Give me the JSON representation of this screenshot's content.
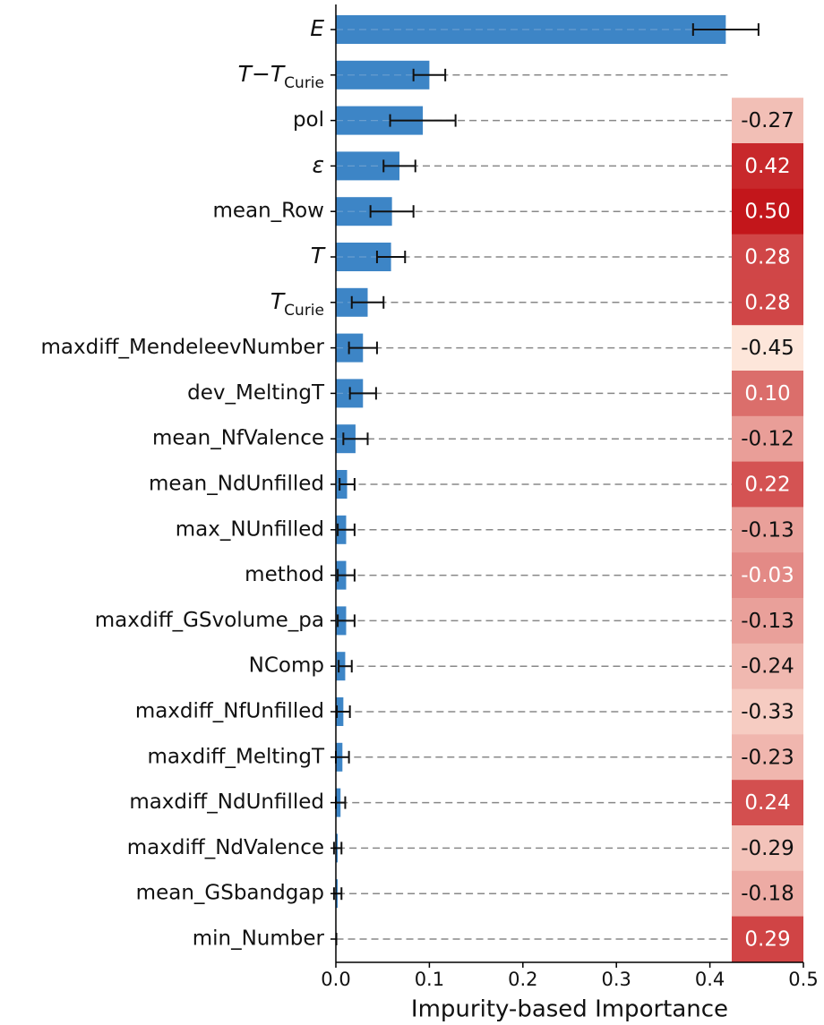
{
  "chart_data": {
    "type": "bar",
    "orientation": "horizontal",
    "x_label": "Impurity-based Importance",
    "categories": [
      {
        "main": "E",
        "italic": true
      },
      {
        "main": "T−T",
        "sub": "Curie",
        "italic": true
      },
      "pol",
      {
        "main": "ε",
        "italic": true
      },
      "mean_Row",
      {
        "main": "T",
        "italic": true
      },
      {
        "main": "T",
        "sub": "Curie",
        "italic": true
      },
      "maxdiff_MendeleevNumber",
      "dev_MeltingT",
      "mean_NfValence",
      "mean_NdUnfilled",
      "max_NUnfilled",
      "method",
      "maxdiff_GSvolume_pa",
      "NComp",
      "maxdiff_NfUnfilled",
      "maxdiff_MeltingT",
      "maxdiff_NdUnfilled",
      "maxdiff_NdValence",
      "mean_GSbandgap",
      "min_Number"
    ],
    "values": [
      0.417,
      0.1,
      0.093,
      0.068,
      0.06,
      0.059,
      0.034,
      0.029,
      0.029,
      0.021,
      0.012,
      0.011,
      0.011,
      0.011,
      0.01,
      0.008,
      0.007,
      0.005,
      0.002,
      0.002,
      0.0005
    ],
    "errors": [
      0.035,
      0.017,
      0.035,
      0.017,
      0.023,
      0.015,
      0.017,
      0.015,
      0.014,
      0.013,
      0.008,
      0.009,
      0.009,
      0.009,
      0.007,
      0.007,
      0.007,
      0.005,
      0.004,
      0.004,
      0
    ],
    "color": "#3d85c6",
    "error_color": "#111111",
    "xlim": [
      0,
      0.5
    ],
    "xticks": [
      {
        "value": 0,
        "label": "0.0"
      },
      0.1,
      0.2,
      0.3,
      0.4,
      0.5
    ],
    "heatmap": {
      "values": [
        null,
        null,
        -0.27,
        0.42,
        0.5,
        0.28,
        0.28,
        -0.45,
        0.1,
        -0.12,
        0.22,
        -0.13,
        -0.03,
        -0.13,
        -0.24,
        -0.33,
        -0.23,
        0.24,
        -0.29,
        -0.18,
        0.29
      ],
      "value_labels": [
        null,
        null,
        "-0.27",
        "0.42",
        "0.50",
        "0.28",
        "0.28",
        "-0.45",
        "0.10",
        "-0.12",
        "0.22",
        "-0.13",
        "-0.03",
        "-0.13",
        "-0.24",
        "-0.33",
        "-0.23",
        "0.24",
        "-0.29",
        "-0.18",
        "0.29"
      ],
      "colors": [
        "#fde6da",
        "#c3161b"
      ]
    }
  }
}
